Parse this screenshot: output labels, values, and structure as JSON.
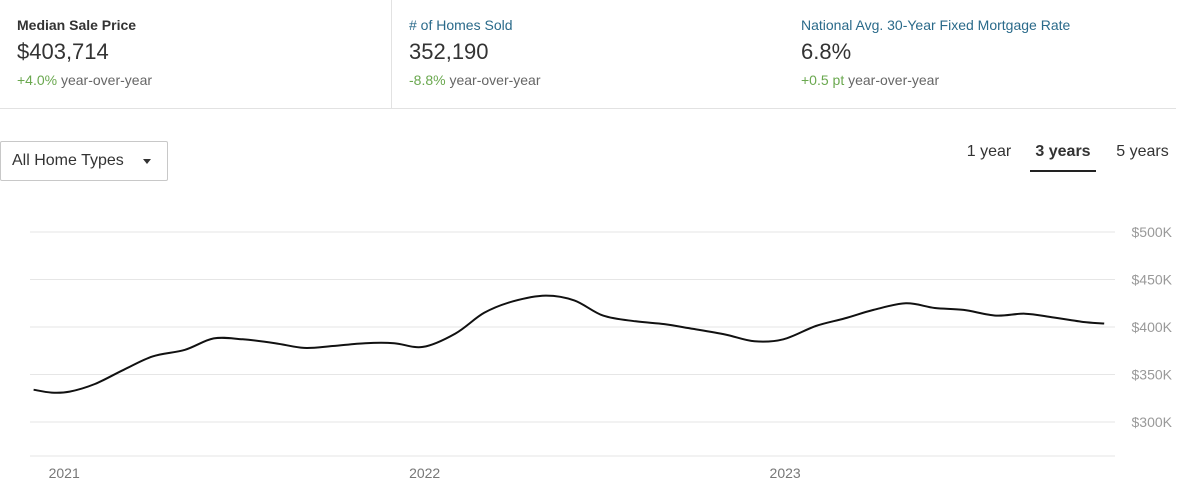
{
  "stats": [
    {
      "label": "Median Sale Price",
      "value": "$403,714",
      "delta": "+4.0%",
      "suffix": "year-over-year"
    },
    {
      "label": "# of Homes Sold",
      "value": "352,190",
      "delta": "-8.8%",
      "suffix": "year-over-year"
    },
    {
      "label": "National Avg. 30-Year Fixed Mortgage Rate",
      "value": "6.8%",
      "delta": "+0.5 pt",
      "suffix": "year-over-year"
    }
  ],
  "filter": {
    "selected": "All Home Types",
    "icon": "chevron-down-icon"
  },
  "range_tabs": [
    {
      "label": "1 year",
      "active": false
    },
    {
      "label": "3 years",
      "active": true
    },
    {
      "label": "5 years",
      "active": false
    }
  ],
  "colors": {
    "line": "#111111",
    "grid": "#e6e6e6",
    "positive": "#6aa84f",
    "label_link": "#2a6a8a"
  },
  "chart_data": {
    "type": "line",
    "title": "",
    "xlabel": "",
    "ylabel": "",
    "grid": true,
    "y_axis_side": "right",
    "ylim": [
      300000,
      500000
    ],
    "y_ticks": [
      300000,
      350000,
      400000,
      450000,
      500000
    ],
    "y_tick_labels": [
      "$300K",
      "$350K",
      "$400K",
      "$450K",
      "$500K"
    ],
    "x_range": [
      2020.99,
      2024.0
    ],
    "x_ticks": [
      2021,
      2022,
      2023
    ],
    "x_tick_labels": [
      "2021",
      "2022",
      "2023"
    ],
    "series": [
      {
        "values": [
          [
            2021.0,
            334000
          ],
          [
            2021.05,
            331000
          ],
          [
            2021.1,
            332000
          ],
          [
            2021.17,
            340000
          ],
          [
            2021.25,
            355000
          ],
          [
            2021.33,
            369000
          ],
          [
            2021.42,
            376000
          ],
          [
            2021.5,
            388000
          ],
          [
            2021.58,
            387000
          ],
          [
            2021.67,
            383000
          ],
          [
            2021.75,
            378000
          ],
          [
            2021.83,
            380000
          ],
          [
            2021.92,
            383000
          ],
          [
            2022.0,
            383000
          ],
          [
            2022.08,
            379000
          ],
          [
            2022.17,
            393000
          ],
          [
            2022.25,
            415000
          ],
          [
            2022.33,
            427000
          ],
          [
            2022.42,
            433000
          ],
          [
            2022.5,
            428000
          ],
          [
            2022.58,
            412000
          ],
          [
            2022.67,
            406000
          ],
          [
            2022.75,
            403000
          ],
          [
            2022.83,
            398000
          ],
          [
            2022.92,
            392000
          ],
          [
            2023.0,
            385000
          ],
          [
            2023.08,
            387000
          ],
          [
            2023.17,
            401000
          ],
          [
            2023.25,
            409000
          ],
          [
            2023.33,
            418000
          ],
          [
            2023.42,
            425000
          ],
          [
            2023.5,
            420000
          ],
          [
            2023.58,
            418000
          ],
          [
            2023.67,
            412000
          ],
          [
            2023.75,
            414000
          ],
          [
            2023.83,
            410000
          ],
          [
            2023.92,
            405000
          ],
          [
            2023.97,
            403714
          ]
        ]
      }
    ]
  }
}
